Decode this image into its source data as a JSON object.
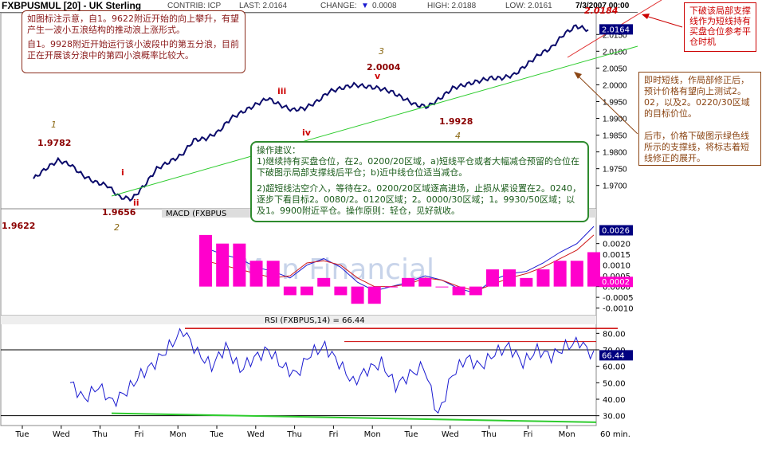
{
  "header": {
    "symbol": "FXBPUSMUL [20] - UK Sterling",
    "contrib": "CONTRIB: ICP",
    "last": "LAST: 2.0164",
    "change": "CHANGE:",
    "change_val": "0.0008",
    "high": "HIGH: 2.0188",
    "low": "LOW: 2.0161",
    "datetime": "7/3/2007 00:00"
  },
  "annotations": {
    "top_left": [
      "如图标注示意，自1。9622附近开始的向上攀升，有望产生一波小五浪结构的推动浪上涨形式。",
      "自1。9928附近开始运行该小波段中的第五分浪，目前正在开展该分浪中的第四小浪概率比较大。"
    ],
    "right_top": "下破该局部支撑线作为短线持有买盘仓位参考平仓时机",
    "right_mid": [
      "即时短线，作局部修正后，预计价格有望向上测试2。02，以及2。0220/30区域的目标价位。",
      "后市，价格下破图示绿色线所示的支撑线，将标志着短线修正的展开。"
    ],
    "ops": [
      "操作建议：",
      "1)继续持有买盘仓位，在2。0200/20区域，a)短线平仓或者大幅减仓预留的仓位在下破图示局部支撑线后平仓；b)近中线仓位适当减仓。",
      "2)超短线沽空介入，等待在2。0200/20区域逐高进场，止损从紧设置在2。0240，逐步下看目标2。0080/2。0120区域；2。0000/30区域；1。9930/50区域；以及1。9900附近平仓。操作原则：轻仓，见好就收。"
    ]
  },
  "colors": {
    "price": "#0b0b6b",
    "support_green": "#2ecc2e",
    "resistance_red": "#e03030",
    "macd_fast": "#1a1ad0",
    "macd_signal": "#d01a1a",
    "hist": "#ff00cc",
    "rsi": "#1a1ad0",
    "wave_label": "#8b0000",
    "wave_num": "#8b6914"
  },
  "chart_data": [
    {
      "type": "line",
      "title": "FXBPUSMUL [20] - UK Sterling",
      "x_ticks": [
        "Tue",
        "Wed",
        "Thu",
        "Fri",
        "Mon",
        "Tue",
        "Wed",
        "Thu",
        "Fri",
        "Mon",
        "Tue",
        "Wed",
        "Thu",
        "Fri",
        "Mon"
      ],
      "x_unit": "60 min.",
      "ylim": [
        1.964,
        2.021
      ],
      "y_ticks": [
        "2.0150",
        "2.0100",
        "2.0050",
        "2.0000",
        "1.9950",
        "1.9900",
        "1.9850",
        "1.9800",
        "1.9750",
        "1.9700"
      ],
      "last_value_tag": "2.0164",
      "series": [
        {
          "values": [
            1.972,
            1.975,
            1.9775,
            1.9762,
            1.973,
            1.971,
            1.97,
            1.9665,
            1.966,
            1.97,
            1.975,
            1.977,
            1.979,
            1.9835,
            1.984,
            1.986,
            1.99,
            1.992,
            1.994,
            1.996,
            1.994,
            1.9925,
            1.993,
            1.995,
            1.998,
            1.999,
            2.0,
            1.9995,
            1.999,
            1.998,
            1.996,
            1.994,
            1.9935,
            1.996,
            1.999,
            2.0,
            2.001,
            2.002,
            2.002,
            2.003,
            2.006,
            2.009,
            2.011,
            2.015,
            2.0175,
            2.0164
          ]
        }
      ],
      "price_labels": [
        "2.0184",
        "1.9782",
        "1.9656",
        "1.9622",
        "2.0004",
        "1.9928"
      ],
      "wave_labels": [
        "i",
        "ii",
        "iii",
        "iv",
        "v"
      ],
      "wave_numbers": [
        "1",
        "2",
        "3",
        "4"
      ]
    },
    {
      "type": "line",
      "title": "MACD (FXBPUS",
      "ylim": [
        -0.0012,
        0.0031
      ],
      "y_ticks": [
        "0.0020",
        "0.0015",
        "0.0010",
        "0.0005",
        "0.0000",
        "-0.0005",
        "-0.0010"
      ],
      "value_tags": [
        "0.0026",
        "0.0002"
      ],
      "series": [
        {
          "values": [
            0.0018,
            0.0015,
            0.0013,
            0.0009,
            0.0007,
            0.0004,
            0.001,
            0.0013,
            0.0009,
            0.0002,
            -0.0002,
            0.0,
            0.0002,
            0.0005,
            0.0003,
            -0.0001,
            -0.0003,
            0.0003,
            0.0006,
            0.0007,
            0.0011,
            0.0016,
            0.002,
            0.0028
          ]
        },
        {
          "values": [
            0.0012,
            0.001,
            0.0008,
            0.0006,
            0.0004,
            0.0005,
            0.0011,
            0.0012,
            0.001,
            0.0004,
            0.0,
            0.0,
            0.0001,
            0.0004,
            0.0003,
            0.0,
            -0.0002,
            0.0001,
            0.0004,
            0.0006,
            0.0009,
            0.0013,
            0.0017,
            0.0024
          ]
        }
      ]
    },
    {
      "type": "line",
      "title": "RSI (FXBPUS,14) = 66.44",
      "ylim": [
        25,
        85
      ],
      "y_ticks": [
        "80.00",
        "70.00",
        "60.00",
        "50.00",
        "40.00",
        "30.00"
      ],
      "value_tag": "66.44",
      "series": [
        {
          "values": [
            50,
            40,
            48,
            38,
            45,
            55,
            62,
            72,
            82,
            68,
            60,
            72,
            58,
            65,
            70,
            60,
            55,
            68,
            72,
            62,
            50,
            58,
            62,
            48,
            55,
            60,
            30,
            55,
            65,
            60,
            68,
            72,
            62,
            70,
            66,
            72,
            75,
            66
          ]
        }
      ]
    }
  ]
}
